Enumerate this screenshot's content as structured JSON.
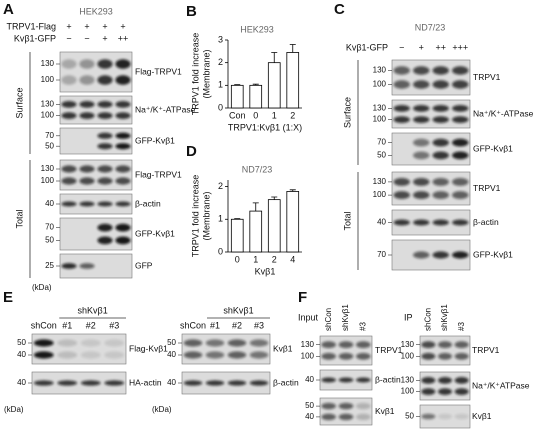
{
  "chart_data": [
    {
      "type": "bar",
      "label": "B",
      "title": "HEK293",
      "categories": [
        "Con",
        "0",
        "1",
        "2"
      ],
      "values": [
        1.0,
        1.0,
        2.0,
        2.45
      ],
      "errors": [
        0.03,
        0.05,
        0.45,
        0.35
      ],
      "color": "#ffffff",
      "ylim": [
        0,
        3
      ],
      "yticks": [
        0,
        1,
        2,
        3
      ],
      "xlabel": "TRPV1:Kvβ1 (1:X)",
      "ylabel": [
        "TRPV1 fold increase",
        "(Membrane)"
      ]
    },
    {
      "type": "bar",
      "label": "D",
      "title": "ND7/23",
      "categories": [
        "0",
        "1",
        "2",
        "4"
      ],
      "values": [
        1.0,
        1.25,
        1.6,
        1.85
      ],
      "errors": [
        0.02,
        0.25,
        0.08,
        0.05
      ],
      "color": "#ffffff",
      "ylim": [
        0,
        2.2
      ],
      "yticks": [
        0,
        1,
        2
      ],
      "xlabel": "Kvβ1",
      "ylabel": [
        "TRPV1 fold increase",
        "(Membrane)"
      ]
    }
  ],
  "panels": {
    "A": {
      "letter": "A",
      "cell": "HEK293",
      "rows": [
        {
          "label": "TRPV1-Flag",
          "signs": [
            "+",
            "+",
            "+",
            "+"
          ]
        },
        {
          "label": "Kvβ1-GFP",
          "signs": [
            "−",
            "−",
            "+",
            "++"
          ]
        }
      ],
      "groups": [
        {
          "label": "Surface",
          "blots": [
            {
              "label": "Flag-TRPV1",
              "markers": [
                130,
                100
              ]
            },
            {
              "label": "Na⁺/K⁺-ATPase",
              "markers": [
                130,
                100
              ]
            },
            {
              "label": "GFP-Kvβ1",
              "markers": [
                70,
                50
              ]
            }
          ]
        },
        {
          "label": "Total",
          "blots": [
            {
              "label": "Flag-TRPV1",
              "markers": [
                130,
                100
              ]
            },
            {
              "label": "β-actin",
              "markers": [
                40
              ]
            },
            {
              "label": "GFP-Kvβ1",
              "markers": [
                70,
                50
              ]
            },
            {
              "label": "GFP",
              "markers": [
                25
              ]
            }
          ]
        }
      ],
      "unit": "(kDa)"
    },
    "C": {
      "letter": "C",
      "cell": "ND7/23",
      "rows": [
        {
          "label": "Kvβ1-GFP",
          "signs": [
            "−",
            "+",
            "++",
            "+++"
          ]
        }
      ],
      "groups": [
        {
          "label": "Surface",
          "blots": [
            {
              "label": "TRPV1",
              "markers": [
                130,
                100
              ]
            },
            {
              "label": "Na⁺/K⁺-ATPase",
              "markers": [
                130,
                100
              ]
            },
            {
              "label": "GFP-Kvβ1",
              "markers": [
                70,
                50
              ]
            }
          ]
        },
        {
          "label": "Total",
          "blots": [
            {
              "label": "TRPV1",
              "markers": [
                130,
                100
              ]
            },
            {
              "label": "β-actin",
              "markers": [
                40
              ]
            },
            {
              "label": "GFP-Kvβ1",
              "markers": [
                70
              ]
            }
          ]
        }
      ]
    },
    "E": {
      "letter": "E",
      "left": {
        "group": "shKvβ1",
        "lanes": [
          "shCon",
          "#1",
          "#2",
          "#3"
        ],
        "blots": [
          {
            "label": "Flag-Kvβ1",
            "markers": [
              50,
              40
            ]
          },
          {
            "label": "HA-actin",
            "markers": [
              40
            ]
          }
        ],
        "unit": "(kDa)"
      },
      "right": {
        "group": "shKvβ1",
        "lanes": [
          "shCon",
          "#1",
          "#2",
          "#3"
        ],
        "blots": [
          {
            "label": "Kvβ1",
            "markers": [
              50,
              40
            ]
          },
          {
            "label": "β-actin",
            "markers": [
              40
            ]
          }
        ],
        "unit": "(kDa)"
      }
    },
    "F": {
      "letter": "F",
      "input": {
        "title": "Input",
        "lanes": [
          "shCon",
          "shKvβ1",
          "#3"
        ],
        "blots": [
          {
            "label": "TRPV1",
            "markers": [
              130,
              100
            ]
          },
          {
            "label": "β-actin",
            "markers": [
              40
            ]
          },
          {
            "label": "Kvβ1",
            "markers": [
              50,
              40
            ]
          }
        ]
      },
      "ip": {
        "title": "IP",
        "lanes": [
          "shCon",
          "shKvβ1",
          "#3"
        ],
        "blots": [
          {
            "label": "TRPV1",
            "markers": [
              130,
              100
            ]
          },
          {
            "label": "Na⁺/K⁺ATPase",
            "markers": [
              130,
              100
            ]
          },
          {
            "label": "Kvβ1",
            "markers": [
              50
            ]
          }
        ]
      }
    }
  }
}
